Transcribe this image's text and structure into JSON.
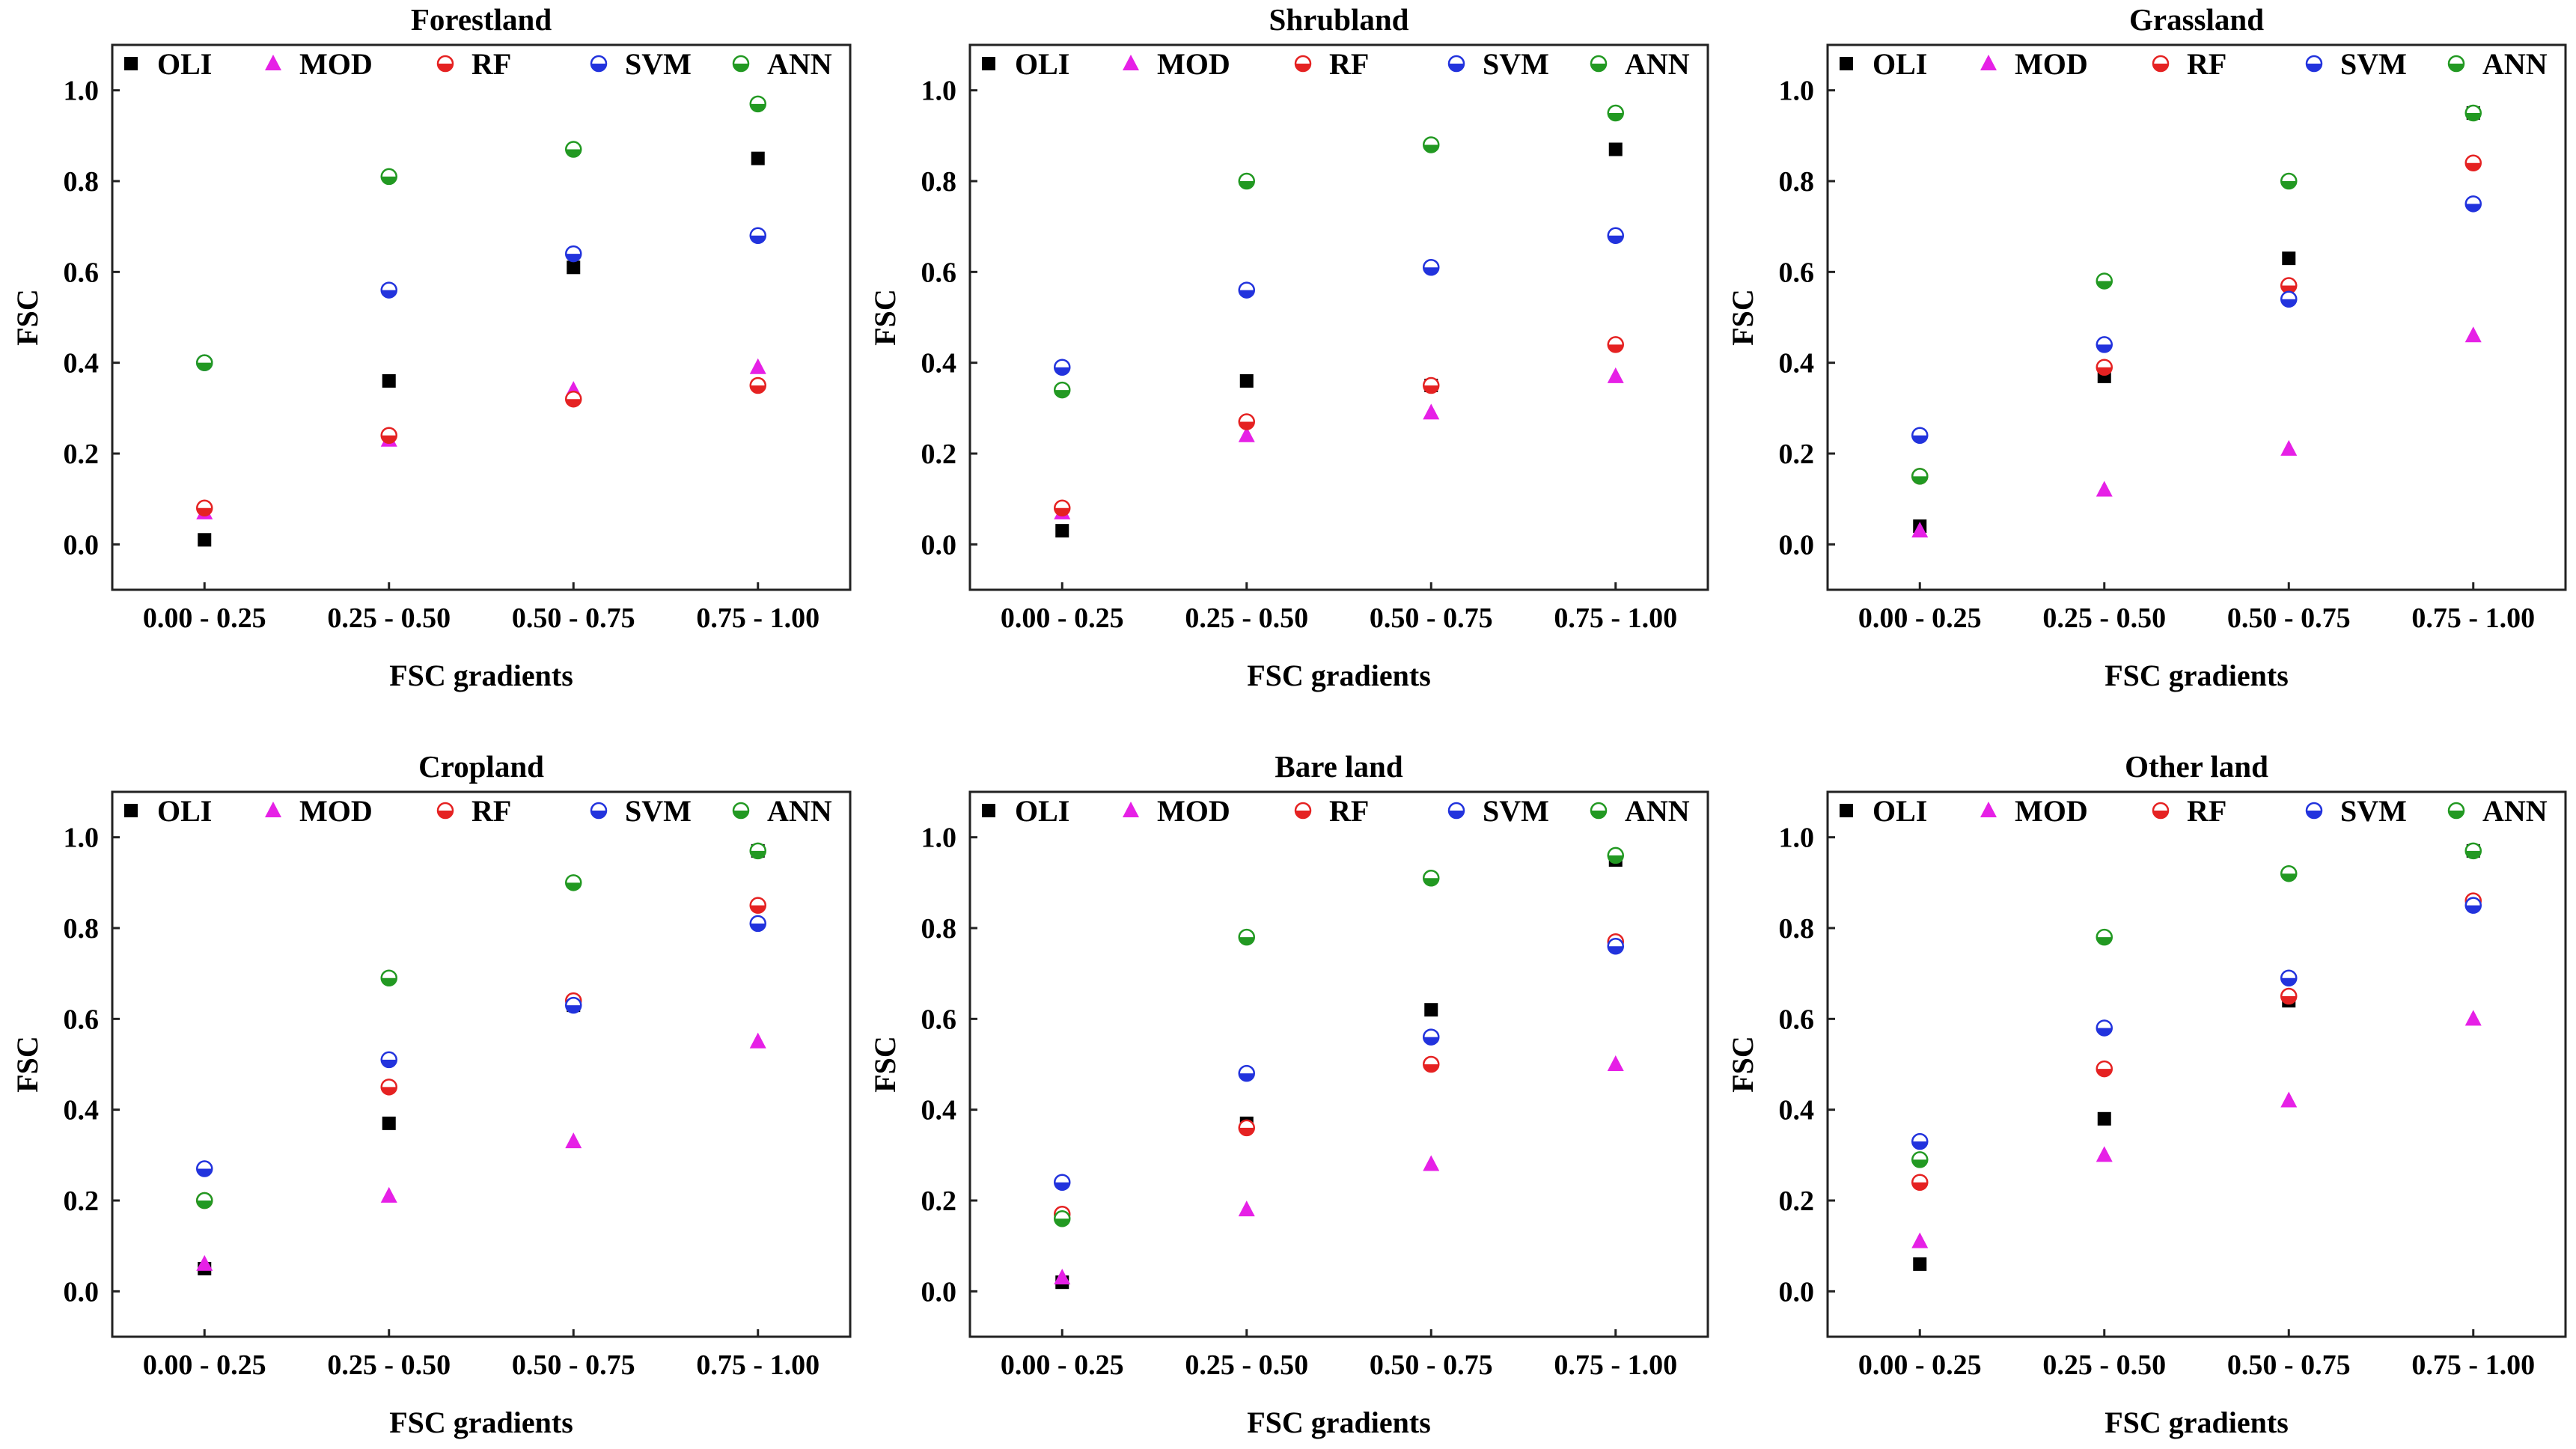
{
  "figure": {
    "xlabel": "FSC gradients",
    "ylabel": "FSC",
    "categories": [
      "0.00 - 0.25",
      "0.25 - 0.50",
      "0.50 - 0.75",
      "0.75 - 1.00"
    ],
    "yticks": [
      "0.0",
      "0.2",
      "0.4",
      "0.6",
      "0.8",
      "1.0"
    ]
  },
  "legend": [
    {
      "name": "OLI",
      "marker": "square",
      "color": "#000000"
    },
    {
      "name": "MOD",
      "marker": "triangle",
      "color": "#e620e6"
    },
    {
      "name": "RF",
      "marker": "half-circle",
      "color": "#e52222"
    },
    {
      "name": "SVM",
      "marker": "half-circle",
      "color": "#2233dd"
    },
    {
      "name": "ANN",
      "marker": "half-circle",
      "color": "#229922"
    }
  ],
  "chart_data": [
    {
      "type": "scatter",
      "title": "Forestland",
      "xlabel": "FSC gradients",
      "ylabel": "FSC",
      "ylim": [
        -0.1,
        1.1
      ],
      "categories": [
        "0.00 - 0.25",
        "0.25 - 0.50",
        "0.50 - 0.75",
        "0.75 - 1.00"
      ],
      "series": [
        {
          "name": "OLI",
          "values": [
            0.01,
            0.36,
            0.61,
            0.85
          ]
        },
        {
          "name": "MOD",
          "values": [
            0.07,
            0.23,
            0.34,
            0.39
          ]
        },
        {
          "name": "RF",
          "values": [
            0.08,
            0.24,
            0.32,
            0.35
          ]
        },
        {
          "name": "SVM",
          "values": [
            0.4,
            0.56,
            0.64,
            0.68
          ]
        },
        {
          "name": "ANN",
          "values": [
            0.4,
            0.81,
            0.87,
            0.97
          ]
        }
      ]
    },
    {
      "type": "scatter",
      "title": "Shrubland",
      "xlabel": "FSC gradients",
      "ylabel": "FSC",
      "ylim": [
        -0.1,
        1.1
      ],
      "categories": [
        "0.00 - 0.25",
        "0.25 - 0.50",
        "0.50 - 0.75",
        "0.75 - 1.00"
      ],
      "series": [
        {
          "name": "OLI",
          "values": [
            0.03,
            0.36,
            0.35,
            0.87
          ]
        },
        {
          "name": "MOD",
          "values": [
            0.07,
            0.24,
            0.29,
            0.37
          ]
        },
        {
          "name": "RF",
          "values": [
            0.08,
            0.27,
            0.35,
            0.44
          ]
        },
        {
          "name": "SVM",
          "values": [
            0.39,
            0.56,
            0.61,
            0.68
          ]
        },
        {
          "name": "ANN",
          "values": [
            0.34,
            0.8,
            0.88,
            0.95
          ]
        }
      ]
    },
    {
      "type": "scatter",
      "title": "Grassland",
      "xlabel": "FSC gradients",
      "ylabel": "FSC",
      "ylim": [
        -0.1,
        1.1
      ],
      "categories": [
        "0.00 - 0.25",
        "0.25 - 0.50",
        "0.50 - 0.75",
        "0.75 - 1.00"
      ],
      "series": [
        {
          "name": "OLI",
          "values": [
            0.04,
            0.37,
            0.63,
            0.95
          ]
        },
        {
          "name": "MOD",
          "values": [
            0.03,
            0.12,
            0.21,
            0.46
          ]
        },
        {
          "name": "RF",
          "values": [
            0.15,
            0.39,
            0.57,
            0.84
          ]
        },
        {
          "name": "SVM",
          "values": [
            0.24,
            0.44,
            0.54,
            0.75
          ]
        },
        {
          "name": "ANN",
          "values": [
            0.15,
            0.58,
            0.8,
            0.95
          ]
        }
      ]
    },
    {
      "type": "scatter",
      "title": "Cropland",
      "xlabel": "FSC gradients",
      "ylabel": "FSC",
      "ylim": [
        -0.1,
        1.1
      ],
      "categories": [
        "0.00 - 0.25",
        "0.25 - 0.50",
        "0.50 - 0.75",
        "0.75 - 1.00"
      ],
      "series": [
        {
          "name": "OLI",
          "values": [
            0.05,
            0.37,
            0.63,
            0.97
          ]
        },
        {
          "name": "MOD",
          "values": [
            0.06,
            0.21,
            0.33,
            0.55
          ]
        },
        {
          "name": "RF",
          "values": [
            0.2,
            0.45,
            0.64,
            0.85
          ]
        },
        {
          "name": "SVM",
          "values": [
            0.27,
            0.51,
            0.63,
            0.81
          ]
        },
        {
          "name": "ANN",
          "values": [
            0.2,
            0.69,
            0.9,
            0.97
          ]
        }
      ]
    },
    {
      "type": "scatter",
      "title": "Bare land",
      "xlabel": "FSC gradients",
      "ylabel": "FSC",
      "ylim": [
        -0.1,
        1.1
      ],
      "categories": [
        "0.00 - 0.25",
        "0.25 - 0.50",
        "0.50 - 0.75",
        "0.75 - 1.00"
      ],
      "series": [
        {
          "name": "OLI",
          "values": [
            0.02,
            0.37,
            0.62,
            0.95
          ]
        },
        {
          "name": "MOD",
          "values": [
            0.03,
            0.18,
            0.28,
            0.5
          ]
        },
        {
          "name": "RF",
          "values": [
            0.17,
            0.36,
            0.5,
            0.77
          ]
        },
        {
          "name": "SVM",
          "values": [
            0.24,
            0.48,
            0.56,
            0.76
          ]
        },
        {
          "name": "ANN",
          "values": [
            0.16,
            0.78,
            0.91,
            0.96
          ]
        }
      ]
    },
    {
      "type": "scatter",
      "title": "Other land",
      "xlabel": "FSC gradients",
      "ylabel": "FSC",
      "ylim": [
        -0.1,
        1.1
      ],
      "categories": [
        "0.00 - 0.25",
        "0.25 - 0.50",
        "0.50 - 0.75",
        "0.75 - 1.00"
      ],
      "series": [
        {
          "name": "OLI",
          "values": [
            0.06,
            0.38,
            0.64,
            0.97
          ]
        },
        {
          "name": "MOD",
          "values": [
            0.11,
            0.3,
            0.42,
            0.6
          ]
        },
        {
          "name": "RF",
          "values": [
            0.24,
            0.49,
            0.65,
            0.86
          ]
        },
        {
          "name": "SVM",
          "values": [
            0.33,
            0.58,
            0.69,
            0.85
          ]
        },
        {
          "name": "ANN",
          "values": [
            0.29,
            0.78,
            0.92,
            0.97
          ]
        }
      ]
    }
  ]
}
